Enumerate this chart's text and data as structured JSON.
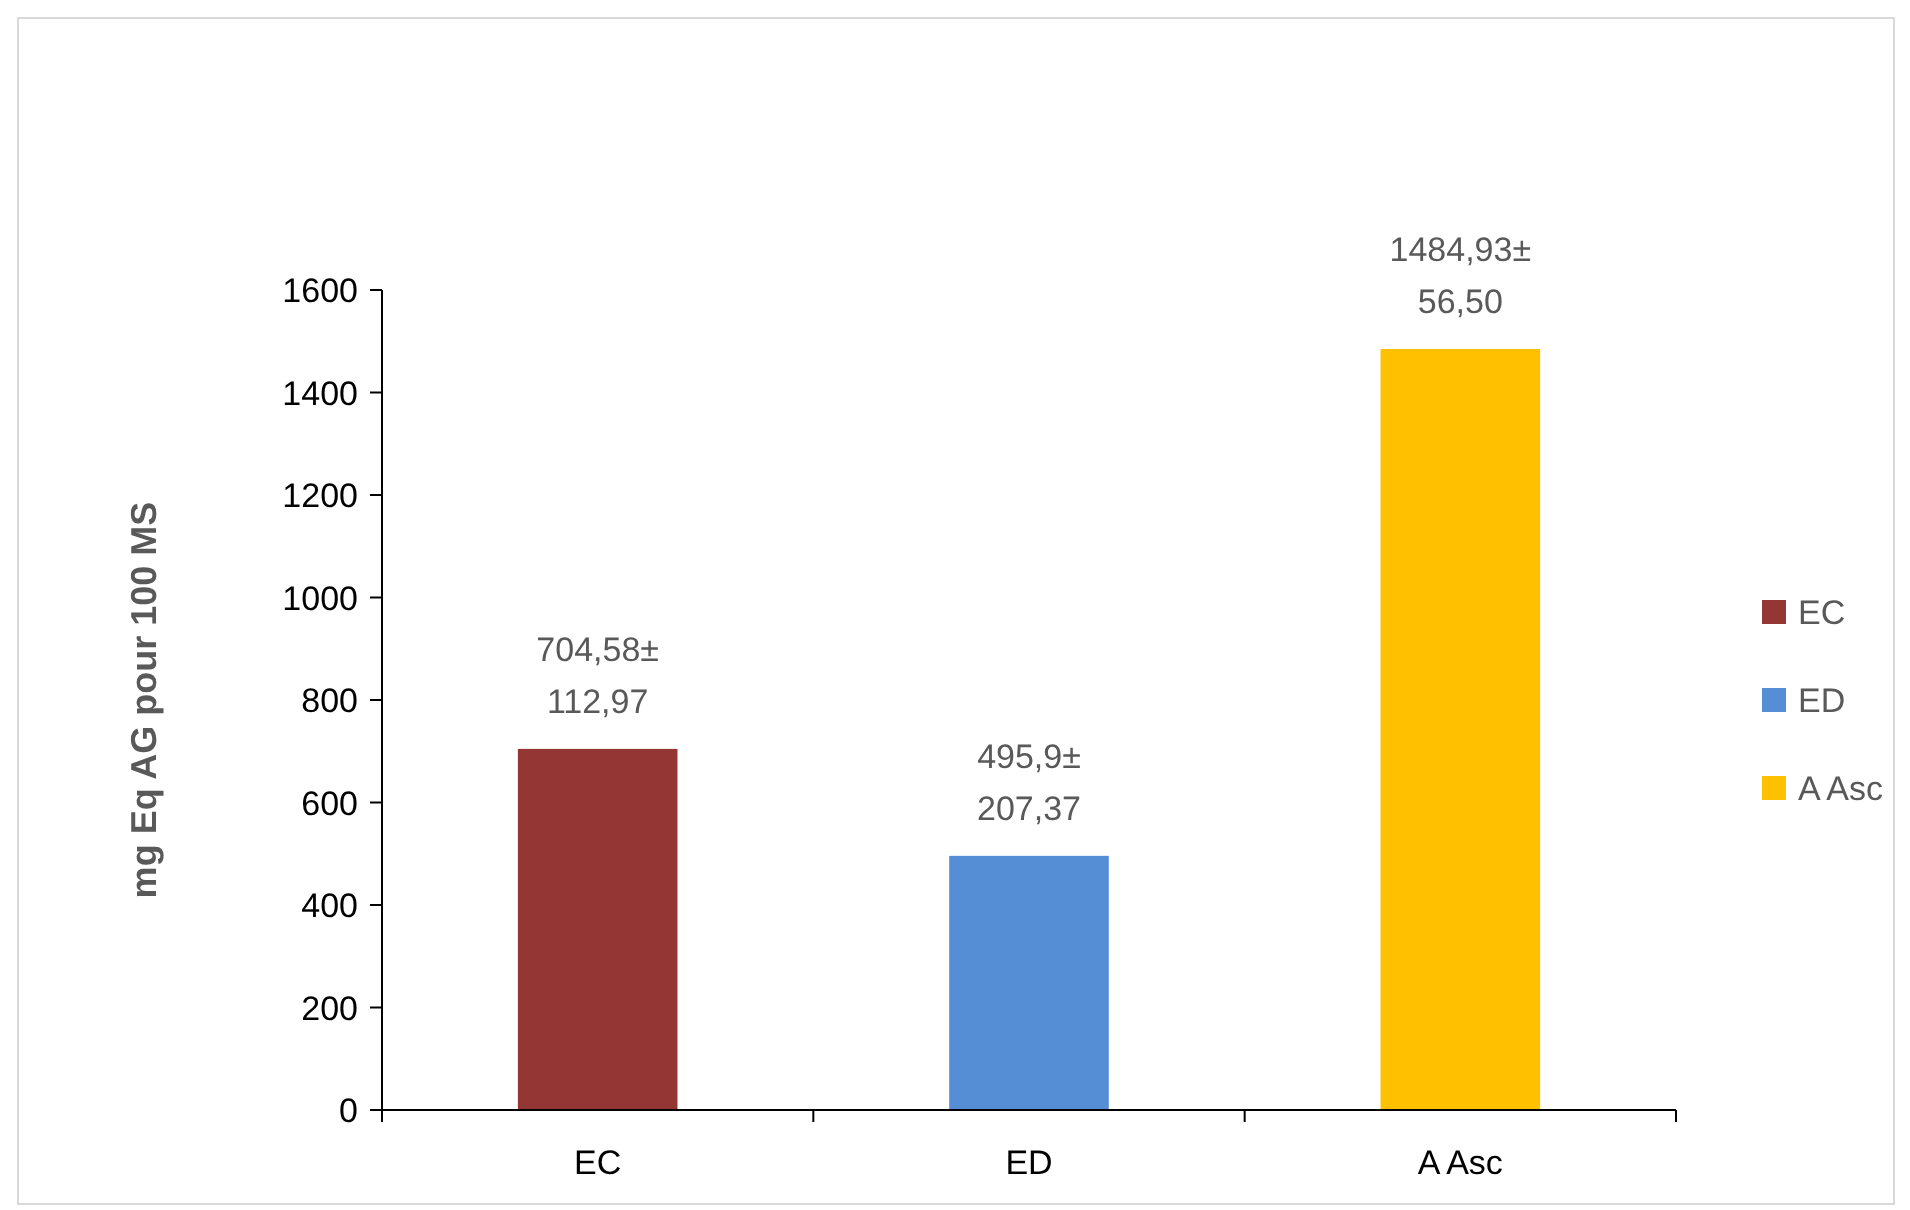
{
  "chart_data": {
    "type": "bar",
    "ylabel": "mg Eq AG pour 100 MS",
    "categories": [
      "EC",
      "ED",
      "A Asc"
    ],
    "series": [
      {
        "name": "EC",
        "color": "#943634",
        "values": [
          704.58,
          null,
          null
        ],
        "value_labels": [
          "704,58±\n112,97",
          null,
          null
        ]
      },
      {
        "name": "ED",
        "color": "#558ed5",
        "values": [
          null,
          495.9,
          null
        ],
        "value_labels": [
          null,
          "495,9±\n207,37",
          null
        ]
      },
      {
        "name": "A Asc",
        "color": "#ffc000",
        "values": [
          null,
          null,
          1484.93
        ],
        "value_labels": [
          null,
          null,
          "1484,93±\n56,50"
        ]
      }
    ],
    "ylim": [
      0,
      1600
    ],
    "yticks": [
      0,
      200,
      400,
      600,
      800,
      1000,
      1200,
      1400,
      1600
    ],
    "grid": false,
    "legend": "right"
  }
}
